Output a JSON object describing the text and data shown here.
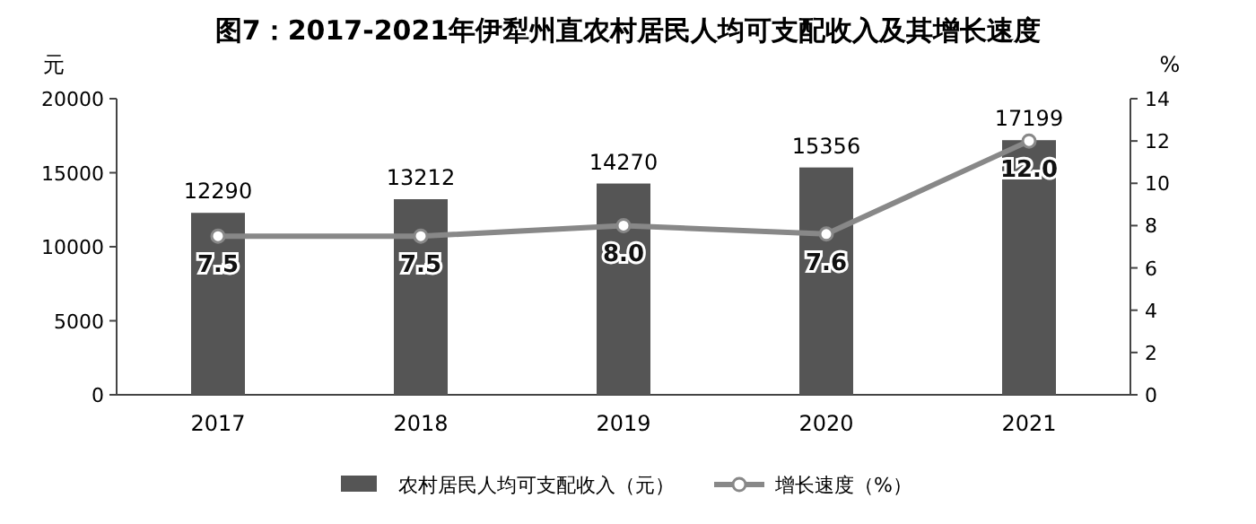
{
  "chart_data": {
    "type": "bar",
    "title": "图7：2017-2021年伊犁州直农村居民人均可支配收入及其增长速度",
    "ylabel": "元",
    "y2label": "%",
    "categories": [
      "2017",
      "2018",
      "2019",
      "2020",
      "2021"
    ],
    "series": [
      {
        "name": "农村居民人均可支配收入（元）",
        "color": "#555555",
        "values": [
          12290,
          13212,
          14270,
          15356,
          17199
        ]
      },
      {
        "name": "增长速度（%）",
        "type": "line",
        "axis": "y2",
        "color": "#888888",
        "values": [
          7.5,
          7.5,
          8.0,
          7.6,
          12.0
        ],
        "value_labels": [
          "7.5",
          "7.5",
          "8.0",
          "7.6",
          "12.0"
        ],
        "marker": "circle"
      }
    ],
    "ylim": [
      0,
      20000
    ],
    "yticks": [
      0,
      5000,
      10000,
      15000,
      20000
    ],
    "y2lim": [
      0,
      14
    ],
    "y2ticks": [
      0,
      2,
      4,
      6,
      8,
      10,
      12,
      14
    ],
    "data_labels": true,
    "legend": "bottom"
  }
}
